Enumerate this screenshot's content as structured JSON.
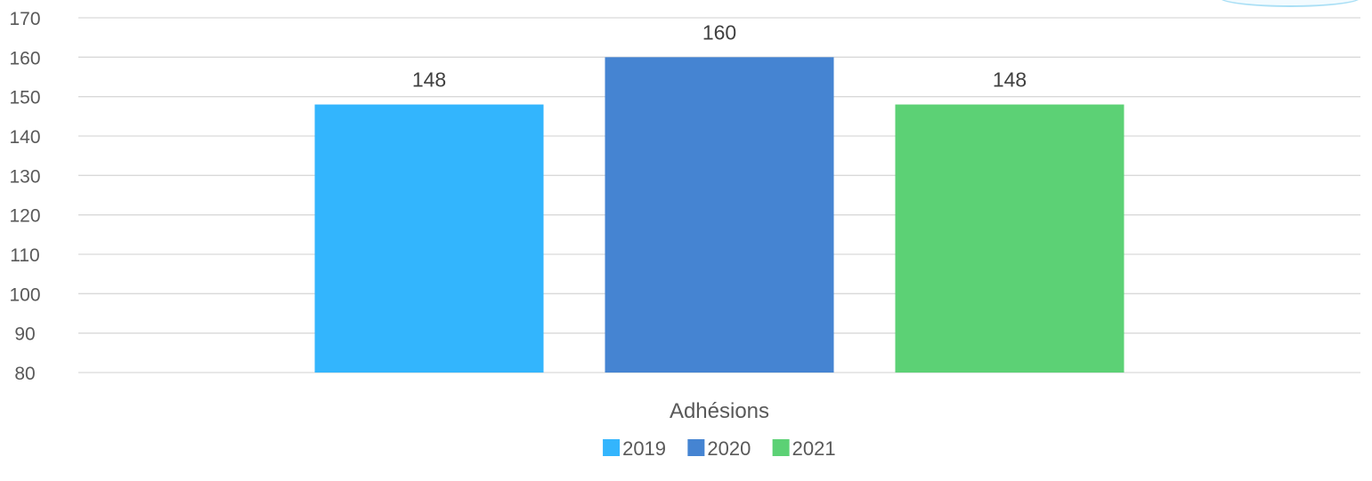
{
  "chart_data": {
    "type": "bar",
    "categories": [
      "Adhésions"
    ],
    "series": [
      {
        "name": "2019",
        "values": [
          148
        ],
        "color": "#33B5FD"
      },
      {
        "name": "2020",
        "values": [
          160
        ],
        "color": "#4584D2"
      },
      {
        "name": "2021",
        "values": [
          148
        ],
        "color": "#5CD175"
      }
    ],
    "ylim": [
      80,
      170
    ],
    "yticks": [
      80,
      90,
      100,
      110,
      120,
      130,
      140,
      150,
      160,
      170
    ],
    "grid": true,
    "legend": "bottom",
    "data_labels": true
  },
  "colors": {
    "gridline": "#d9d9d9",
    "text": "#595959",
    "data_label": "#404040"
  }
}
